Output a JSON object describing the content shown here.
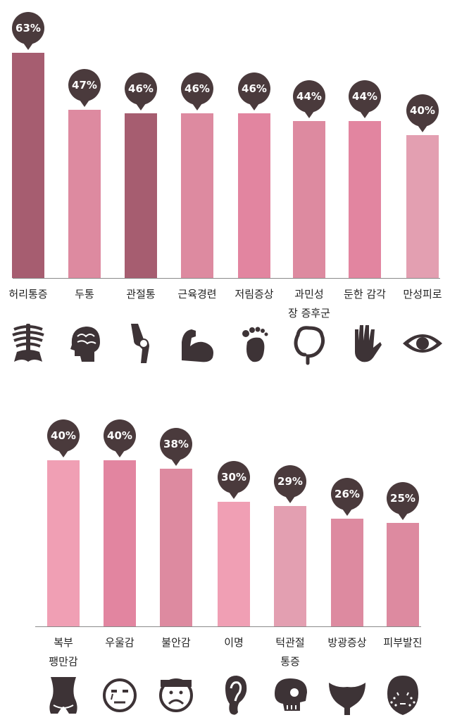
{
  "chart_data": [
    {
      "type": "bar",
      "categories": [
        [
          "허리통증"
        ],
        [
          "두통"
        ],
        [
          "관절통"
        ],
        [
          "근육경련"
        ],
        [
          "저림증상"
        ],
        [
          "과민성",
          "장 증후군"
        ],
        [
          "둔한 감각"
        ],
        [
          "만성피로"
        ]
      ],
      "values": [
        63,
        47,
        46,
        46,
        46,
        44,
        44,
        40
      ],
      "value_labels": [
        "63%",
        "47%",
        "46%",
        "46%",
        "46%",
        "44%",
        "44%",
        "40%"
      ],
      "icons": [
        "skeleton-icon",
        "brain-icon",
        "knee-joint-icon",
        "flexed-arm-icon",
        "foot-icon",
        "intestine-icon",
        "hand-icon",
        "eye-icon"
      ],
      "colors": [
        "#a65d70",
        "#dd8aa0",
        "#a65d70",
        "#dd8aa0",
        "#e285a0",
        "#dd8aa0",
        "#e285a0",
        "#e39fb1"
      ],
      "ylim": [
        0,
        63
      ],
      "grid": false
    },
    {
      "type": "bar",
      "categories": [
        [
          "복부",
          "팽만감"
        ],
        [
          "우울감"
        ],
        [
          "불안감"
        ],
        [
          "이명"
        ],
        [
          "턱관절",
          "통증"
        ],
        [
          "방광증상"
        ],
        [
          "피부발진"
        ]
      ],
      "values": [
        40,
        40,
        38,
        30,
        29,
        26,
        25
      ],
      "value_labels": [
        "40%",
        "40%",
        "38%",
        "30%",
        "29%",
        "26%",
        "25%"
      ],
      "icons": [
        "abdomen-icon",
        "sad-face-icon",
        "frown-face-icon",
        "ear-icon",
        "skull-icon",
        "bladder-icon",
        "rash-face-icon"
      ],
      "colors": [
        "#f09fb4",
        "#e285a0",
        "#dd8aa0",
        "#f09fb4",
        "#e39fb1",
        "#dd8aa0",
        "#dd8aa0"
      ],
      "ylim": [
        0,
        40
      ],
      "grid": false
    }
  ],
  "colors": {
    "bubble": "#4a3a3c",
    "icon": "#3d3336",
    "axis": "#8a8a8a"
  }
}
